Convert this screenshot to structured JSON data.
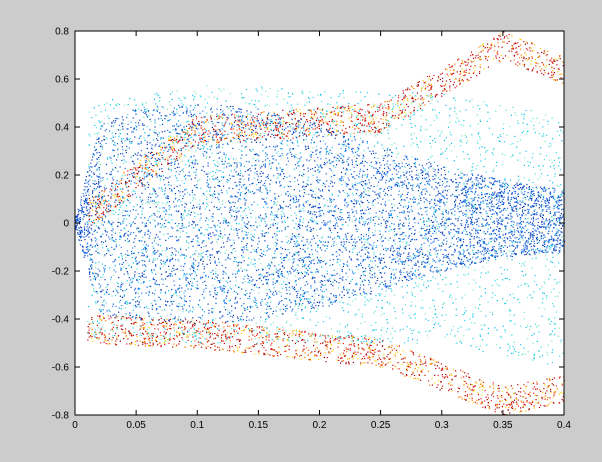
{
  "chart_data": {
    "type": "scatter",
    "title": "",
    "xlabel": "",
    "ylabel": "",
    "xlim": [
      0,
      0.4
    ],
    "ylim": [
      -0.8,
      0.8
    ],
    "xticks": [
      "0",
      "0.05",
      "0.1",
      "0.15",
      "0.2",
      "0.25",
      "0.3",
      "0.35",
      "0.4"
    ],
    "yticks": [
      "-0.8",
      "-0.6",
      "-0.4",
      "-0.2",
      "0",
      "0.2",
      "0.4",
      "0.6",
      "0.8"
    ],
    "grid": false,
    "legend": "none",
    "colormap": "jet",
    "series": [
      {
        "color_group": "core",
        "colors": [
          "#0a3fbf",
          "#0f56d9",
          "#1a6fe6",
          "#0b33a8",
          "#2a80ee"
        ],
        "envelope": [
          {
            "x": 0.0,
            "y_min": -0.02,
            "y_max": 0.02
          },
          {
            "x": 0.02,
            "y_min": -0.38,
            "y_max": 0.42
          },
          {
            "x": 0.05,
            "y_min": -0.4,
            "y_max": 0.48
          },
          {
            "x": 0.1,
            "y_min": -0.42,
            "y_max": 0.5
          },
          {
            "x": 0.15,
            "y_min": -0.4,
            "y_max": 0.48
          },
          {
            "x": 0.2,
            "y_min": -0.36,
            "y_max": 0.42
          },
          {
            "x": 0.25,
            "y_min": -0.28,
            "y_max": 0.32
          },
          {
            "x": 0.3,
            "y_min": -0.2,
            "y_max": 0.24
          },
          {
            "x": 0.35,
            "y_min": -0.14,
            "y_max": 0.18
          },
          {
            "x": 0.4,
            "y_min": -0.12,
            "y_max": 0.14
          }
        ]
      },
      {
        "color_group": "cyan-band",
        "colors": [
          "#00bfe6",
          "#20d0f0",
          "#4fe0e0",
          "#7fe8c0"
        ],
        "envelope": [
          {
            "x": 0.01,
            "y_min": -0.48,
            "y_max": 0.5
          },
          {
            "x": 0.1,
            "y_min": -0.5,
            "y_max": 0.58
          },
          {
            "x": 0.2,
            "y_min": -0.5,
            "y_max": 0.56
          },
          {
            "x": 0.3,
            "y_min": -0.5,
            "y_max": 0.54
          },
          {
            "x": 0.4,
            "y_min": -0.6,
            "y_max": 0.45
          }
        ]
      },
      {
        "color_group": "warm-edge",
        "colors": [
          "#e62020",
          "#c80000",
          "#ff7a00",
          "#ffd000",
          "#a00000"
        ],
        "envelope": [
          {
            "x": 0.01,
            "y_min": -0.5,
            "y_max": 0.1
          },
          {
            "x": 0.1,
            "y_min": -0.52,
            "y_max": 0.45
          },
          {
            "x": 0.25,
            "y_min": -0.6,
            "y_max": 0.5
          },
          {
            "x": 0.3,
            "y_min": -0.7,
            "y_max": 0.65
          },
          {
            "x": 0.35,
            "y_min": -0.8,
            "y_max": 0.8
          },
          {
            "x": 0.4,
            "y_min": -0.75,
            "y_max": 0.7
          }
        ]
      }
    ]
  }
}
